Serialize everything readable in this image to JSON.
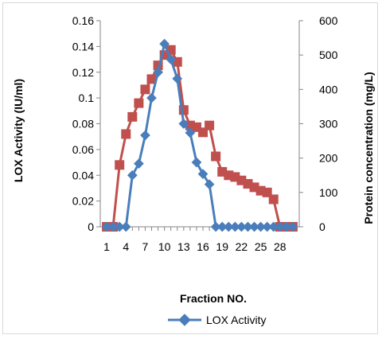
{
  "chart_data": {
    "type": "line",
    "title": "",
    "xlabel": "Fraction NO.",
    "ylabel": "LOX Activity (IU/ml)",
    "y2label": "Protein concentration (mg/L)",
    "x": [
      1,
      2,
      3,
      4,
      5,
      6,
      7,
      8,
      9,
      10,
      11,
      12,
      13,
      14,
      15,
      16,
      17,
      18,
      19,
      20,
      21,
      22,
      23,
      24,
      25,
      26,
      27,
      28,
      29,
      30
    ],
    "x_tick_labels": [
      "1",
      "4",
      "7",
      "10",
      "13",
      "16",
      "19",
      "22",
      "25",
      "28"
    ],
    "x_tick_values": [
      1,
      4,
      7,
      10,
      13,
      16,
      19,
      22,
      25,
      28
    ],
    "xlim": [
      0,
      31
    ],
    "ylim": [
      0,
      0.16
    ],
    "y_ticks": [
      "0",
      "0.02",
      "0.04",
      "0.06",
      "0.08",
      "0.1",
      "0.12",
      "0.14",
      "0.16"
    ],
    "y2lim": [
      0,
      600
    ],
    "y2_ticks": [
      "0",
      "100",
      "200",
      "300",
      "400",
      "500",
      "600"
    ],
    "grid": false,
    "legend_position": "bottom",
    "series": [
      {
        "name": "LOX Activity",
        "axis": "left",
        "color": "#4a7ebb",
        "marker": "diamond",
        "values": [
          0,
          0,
          0,
          0,
          0.04,
          0.049,
          0.071,
          0.1,
          0.12,
          0.142,
          0.13,
          0.115,
          0.08,
          0.073,
          0.05,
          0.041,
          0.033,
          0,
          0,
          0,
          0,
          0,
          0,
          0,
          0,
          0,
          0,
          0,
          0,
          0
        ]
      },
      {
        "name": "",
        "axis": "right",
        "color": "#c0504d",
        "marker": "square",
        "values": [
          0,
          0,
          180,
          270,
          320,
          360,
          400,
          430,
          470,
          500,
          515,
          480,
          340,
          295,
          290,
          275,
          295,
          205,
          160,
          150,
          145,
          135,
          125,
          115,
          105,
          100,
          80,
          0,
          0,
          0
        ]
      }
    ]
  },
  "legend": {
    "label": "LOX Activity",
    "icon": "diamond-line-marker"
  }
}
